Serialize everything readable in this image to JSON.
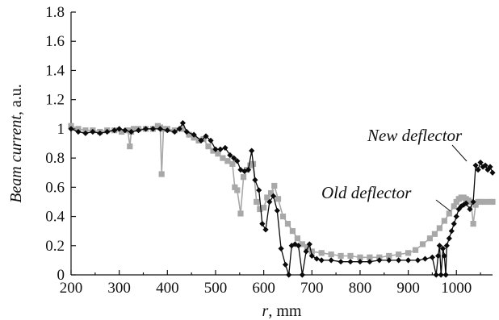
{
  "chart_data": {
    "type": "line",
    "ylabel_italic": "Beam current",
    "ylabel_rest": ", a.u.",
    "xlabel_italic": "r",
    "xlabel_rest": ", mm",
    "xlim": [
      200,
      1075
    ],
    "ylim": [
      0,
      1.8
    ],
    "xticks": [
      200,
      300,
      400,
      500,
      600,
      700,
      800,
      900,
      1000
    ],
    "yticks": [
      0,
      0.2,
      0.4,
      0.6,
      0.8,
      1,
      1.2,
      1.4,
      1.6,
      1.8
    ],
    "annotations": [
      {
        "text": "New deflector",
        "x": 455,
        "y": 0.965,
        "target": "new"
      },
      {
        "text": "Old deflector",
        "x": 398,
        "y": 0.67,
        "target": "old"
      }
    ],
    "series": [
      {
        "id": "old",
        "color": "#a8a8a8",
        "marker": "square",
        "x": [
          200,
          215,
          230,
          245,
          260,
          275,
          290,
          305,
          318,
          322,
          325,
          330,
          340,
          355,
          370,
          380,
          385,
          388,
          392,
          400,
          415,
          430,
          445,
          455,
          465,
          475,
          485,
          495,
          505,
          515,
          525,
          535,
          540,
          545,
          552,
          558,
          565,
          572,
          578,
          585,
          592,
          600,
          607,
          615,
          622,
          630,
          640,
          650,
          660,
          670,
          680,
          690,
          700,
          720,
          740,
          760,
          780,
          800,
          820,
          840,
          860,
          880,
          900,
          915,
          930,
          945,
          955,
          965,
          975,
          985,
          995,
          1000,
          1005,
          1010,
          1015,
          1020,
          1025,
          1030,
          1035,
          1040,
          1045,
          1050,
          1060,
          1070,
          1075
        ],
        "y": [
          1.02,
          1.0,
          0.99,
          0.99,
          0.98,
          0.99,
          0.99,
          0.98,
          0.99,
          0.88,
          0.98,
          1.0,
          1.0,
          1.0,
          1.0,
          1.02,
          1.01,
          0.69,
          1.0,
          1.0,
          0.99,
          1.0,
          0.96,
          0.94,
          0.92,
          0.93,
          0.88,
          0.85,
          0.83,
          0.8,
          0.78,
          0.76,
          0.6,
          0.58,
          0.42,
          0.67,
          0.72,
          0.75,
          0.76,
          0.5,
          0.45,
          0.46,
          0.53,
          0.56,
          0.61,
          0.52,
          0.4,
          0.35,
          0.3,
          0.25,
          0.21,
          0.19,
          0.16,
          0.15,
          0.14,
          0.13,
          0.13,
          0.12,
          0.12,
          0.12,
          0.13,
          0.14,
          0.15,
          0.17,
          0.21,
          0.25,
          0.28,
          0.32,
          0.37,
          0.42,
          0.47,
          0.5,
          0.52,
          0.53,
          0.53,
          0.52,
          0.51,
          0.5,
          0.35,
          0.48,
          0.5,
          0.5,
          0.5,
          0.5,
          0.5
        ]
      },
      {
        "id": "new",
        "color": "#0a0a0a",
        "marker": "diamond",
        "x": [
          200,
          215,
          230,
          245,
          260,
          275,
          290,
          300,
          312,
          325,
          340,
          355,
          370,
          385,
          400,
          415,
          425,
          432,
          440,
          455,
          470,
          480,
          490,
          500,
          510,
          520,
          530,
          538,
          545,
          552,
          560,
          568,
          575,
          582,
          590,
          597,
          604,
          612,
          620,
          628,
          636,
          645,
          652,
          658,
          665,
          672,
          680,
          688,
          695,
          700,
          710,
          720,
          740,
          760,
          780,
          800,
          820,
          840,
          860,
          880,
          900,
          920,
          935,
          950,
          958,
          962,
          965,
          968,
          972,
          975,
          978,
          980,
          985,
          990,
          995,
          1000,
          1005,
          1010,
          1015,
          1020,
          1028,
          1035,
          1040,
          1045,
          1050,
          1055,
          1060,
          1065,
          1070,
          1075
        ],
        "y": [
          1.0,
          0.98,
          0.97,
          0.98,
          0.97,
          0.98,
          0.99,
          1.0,
          0.99,
          0.98,
          0.99,
          1.0,
          1.0,
          1.0,
          0.99,
          0.98,
          1.0,
          1.04,
          0.98,
          0.96,
          0.92,
          0.95,
          0.92,
          0.86,
          0.86,
          0.87,
          0.82,
          0.8,
          0.78,
          0.72,
          0.71,
          0.72,
          0.85,
          0.65,
          0.58,
          0.35,
          0.31,
          0.5,
          0.54,
          0.44,
          0.18,
          0.07,
          0.0,
          0.2,
          0.21,
          0.2,
          0.0,
          0.16,
          0.21,
          0.13,
          0.11,
          0.1,
          0.1,
          0.09,
          0.09,
          0.09,
          0.09,
          0.1,
          0.1,
          0.1,
          0.1,
          0.1,
          0.11,
          0.12,
          0.0,
          0.13,
          0.2,
          0.0,
          0.18,
          0.13,
          0.0,
          0.2,
          0.25,
          0.3,
          0.35,
          0.4,
          0.45,
          0.47,
          0.48,
          0.49,
          0.45,
          0.5,
          0.75,
          0.72,
          0.77,
          0.74,
          0.75,
          0.72,
          0.74,
          0.7
        ]
      }
    ]
  }
}
